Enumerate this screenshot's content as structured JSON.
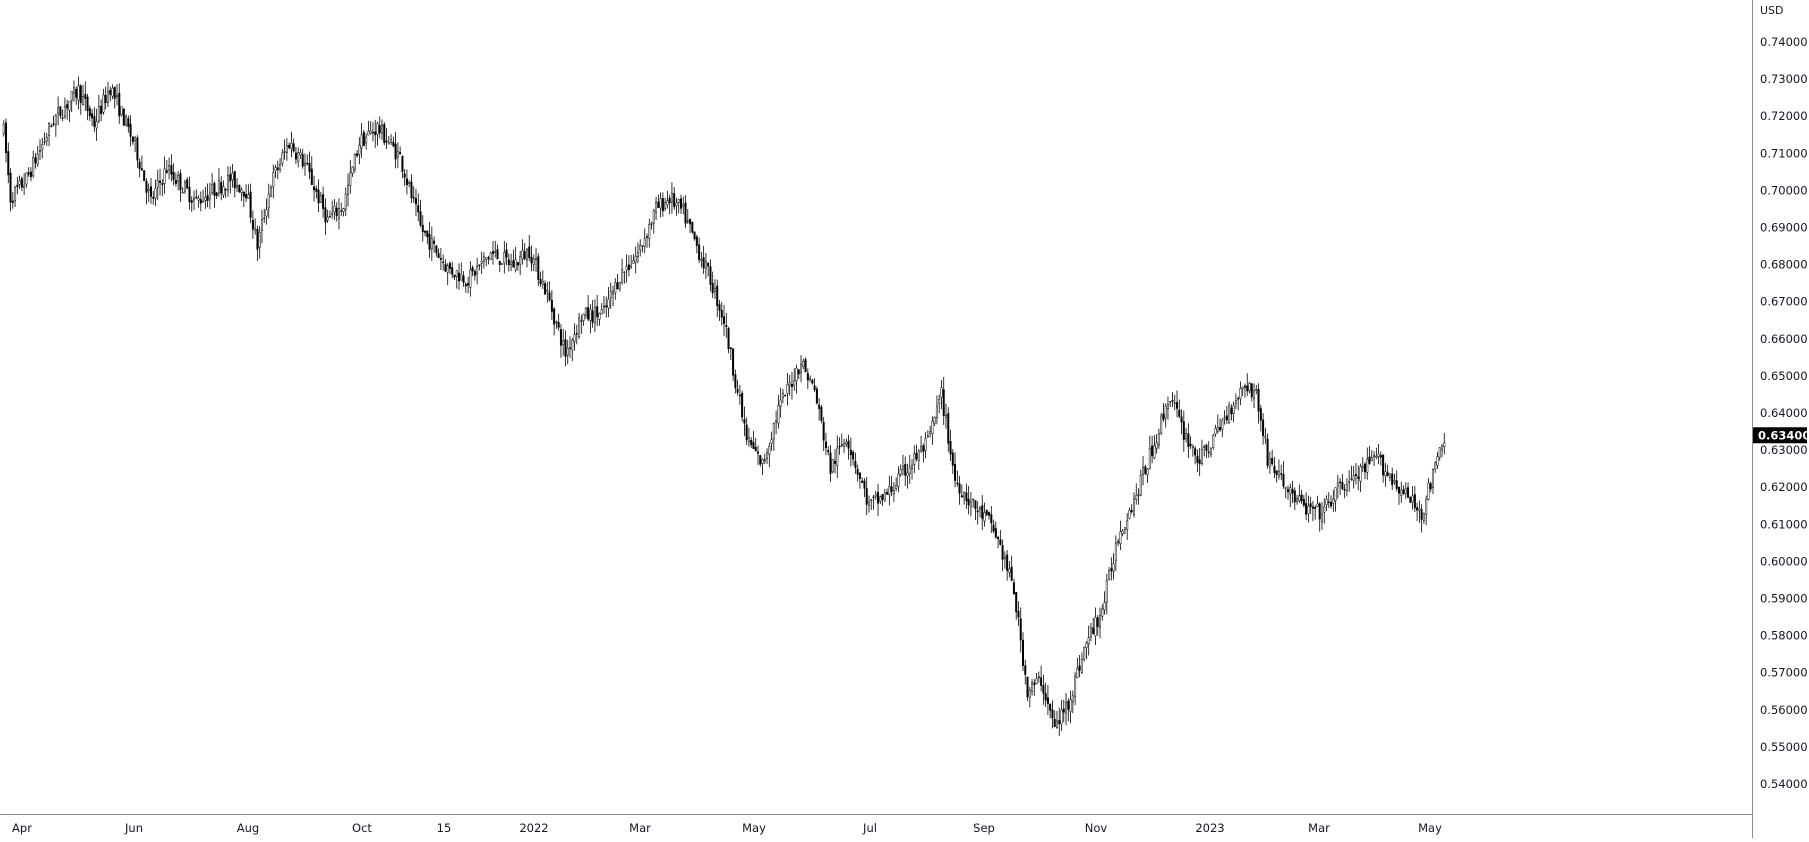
{
  "colors": {
    "background": "#ffffff",
    "candle": "#000000",
    "axis_line": "#8a8e99",
    "text": "#131722",
    "last_price_bg": "#000000",
    "last_price_text": "#ffffff"
  },
  "price_axis": {
    "unit": "USD",
    "ticks": [
      "0.74000",
      "0.73000",
      "0.72000",
      "0.71000",
      "0.70000",
      "0.69000",
      "0.68000",
      "0.67000",
      "0.66000",
      "0.65000",
      "0.64000",
      "0.63000",
      "0.62000",
      "0.61000",
      "0.60000",
      "0.59000",
      "0.58000",
      "0.57000",
      "0.56000",
      "0.55000",
      "0.54000"
    ]
  },
  "last_price": {
    "label": "0.63400",
    "value": 0.634
  },
  "time_axis": {
    "labels": [
      "Apr",
      "Jun",
      "Aug",
      "Oct",
      "15",
      "2022",
      "Mar",
      "May",
      "Jul",
      "Sep",
      "Nov",
      "2023",
      "Mar",
      "May"
    ]
  },
  "chart_data": {
    "type": "candlestick",
    "title": "",
    "ylabel": "USD",
    "ylim": [
      0.535,
      0.745
    ],
    "grid": false,
    "x_axis": [
      "Apr",
      "Jun",
      "Aug",
      "Oct",
      "15",
      "2022",
      "Mar",
      "May",
      "Jul",
      "Sep",
      "Nov",
      "2023",
      "Mar",
      "May"
    ],
    "price_anchors": [
      [
        0,
        0.716
      ],
      [
        3,
        0.698
      ],
      [
        10,
        0.703
      ],
      [
        22,
        0.719
      ],
      [
        33,
        0.727
      ],
      [
        40,
        0.718
      ],
      [
        47,
        0.728
      ],
      [
        58,
        0.712
      ],
      [
        65,
        0.697
      ],
      [
        72,
        0.706
      ],
      [
        85,
        0.697
      ],
      [
        100,
        0.703
      ],
      [
        107,
        0.7
      ],
      [
        112,
        0.685
      ],
      [
        118,
        0.702
      ],
      [
        126,
        0.713
      ],
      [
        133,
        0.707
      ],
      [
        143,
        0.692
      ],
      [
        150,
        0.696
      ],
      [
        157,
        0.713
      ],
      [
        165,
        0.717
      ],
      [
        175,
        0.709
      ],
      [
        184,
        0.69
      ],
      [
        196,
        0.679
      ],
      [
        205,
        0.676
      ],
      [
        215,
        0.683
      ],
      [
        225,
        0.68
      ],
      [
        232,
        0.684
      ],
      [
        240,
        0.672
      ],
      [
        248,
        0.656
      ],
      [
        255,
        0.666
      ],
      [
        265,
        0.667
      ],
      [
        272,
        0.677
      ],
      [
        280,
        0.683
      ],
      [
        288,
        0.695
      ],
      [
        294,
        0.698
      ],
      [
        300,
        0.694
      ],
      [
        312,
        0.676
      ],
      [
        318,
        0.665
      ],
      [
        328,
        0.633
      ],
      [
        335,
        0.626
      ],
      [
        342,
        0.641
      ],
      [
        352,
        0.654
      ],
      [
        358,
        0.646
      ],
      [
        365,
        0.625
      ],
      [
        372,
        0.634
      ],
      [
        382,
        0.615
      ],
      [
        390,
        0.618
      ],
      [
        400,
        0.626
      ],
      [
        408,
        0.632
      ],
      [
        414,
        0.645
      ],
      [
        420,
        0.622
      ],
      [
        428,
        0.615
      ],
      [
        436,
        0.61
      ],
      [
        440,
        0.604
      ],
      [
        446,
        0.592
      ],
      [
        452,
        0.565
      ],
      [
        458,
        0.568
      ],
      [
        464,
        0.555
      ],
      [
        470,
        0.562
      ],
      [
        478,
        0.578
      ],
      [
        485,
        0.587
      ],
      [
        492,
        0.607
      ],
      [
        500,
        0.618
      ],
      [
        508,
        0.632
      ],
      [
        515,
        0.645
      ],
      [
        520,
        0.636
      ],
      [
        528,
        0.627
      ],
      [
        535,
        0.634
      ],
      [
        542,
        0.642
      ],
      [
        548,
        0.648
      ],
      [
        553,
        0.645
      ],
      [
        558,
        0.628
      ],
      [
        566,
        0.62
      ],
      [
        575,
        0.614
      ],
      [
        582,
        0.613
      ],
      [
        590,
        0.62
      ],
      [
        598,
        0.623
      ],
      [
        606,
        0.628
      ],
      [
        612,
        0.623
      ],
      [
        620,
        0.617
      ],
      [
        626,
        0.613
      ],
      [
        632,
        0.625
      ],
      [
        636,
        0.634
      ]
    ],
    "highs": [
      {
        "date": "2021-05-26",
        "value": 0.731
      },
      {
        "date": "2021-10-28",
        "value": 0.722
      },
      {
        "date": "2022-04-05",
        "value": 0.703
      },
      {
        "date": "2022-06-03",
        "value": 0.657
      },
      {
        "date": "2022-08-11",
        "value": 0.646
      },
      {
        "date": "2023-02-02",
        "value": 0.654
      }
    ],
    "lows": [
      {
        "date": "2021-08-20",
        "value": 0.681
      },
      {
        "date": "2022-01-28",
        "value": 0.653
      },
      {
        "date": "2022-05-12",
        "value": 0.622
      },
      {
        "date": "2022-07-14",
        "value": 0.607
      },
      {
        "date": "2022-10-13",
        "value": 0.552
      },
      {
        "date": "2023-03-08",
        "value": 0.609
      },
      {
        "date": "2023-05-02",
        "value": 0.611
      }
    ],
    "last": 0.634
  }
}
